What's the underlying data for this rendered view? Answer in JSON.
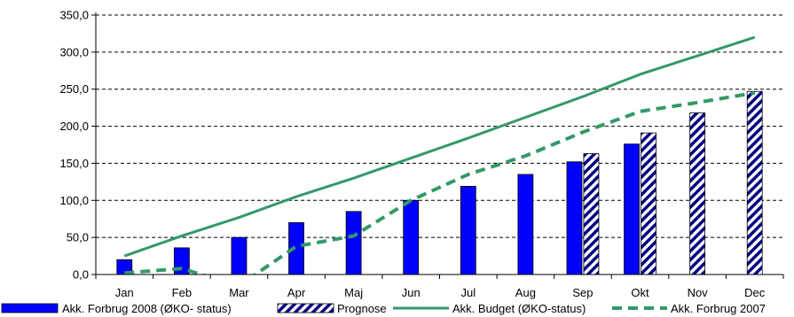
{
  "chart_data": {
    "type": "bar",
    "categories": [
      "Jan",
      "Feb",
      "Mar",
      "Apr",
      "Maj",
      "Jun",
      "Jul",
      "Aug",
      "Sep",
      "Okt",
      "Nov",
      "Dec"
    ],
    "ylim": [
      0,
      350
    ],
    "yticks": [
      "0,0",
      "50,0",
      "100,0",
      "150,0",
      "200,0",
      "250,0",
      "300,0",
      "350,0"
    ],
    "ytick_values": [
      0,
      50,
      100,
      150,
      200,
      250,
      300,
      350
    ],
    "grid": true,
    "legend_position": "bottom",
    "series": [
      {
        "name": "Akk. Forbrug 2008 (ØKO- status)",
        "kind": "bar",
        "color": "#0000ff",
        "values": [
          20,
          36,
          50,
          70,
          85,
          100,
          119,
          135,
          152,
          176,
          null,
          null
        ]
      },
      {
        "name": "Prognose",
        "kind": "bar-hatched",
        "color": "#000080",
        "values": [
          null,
          null,
          null,
          null,
          null,
          null,
          null,
          null,
          163,
          191,
          218,
          247
        ]
      },
      {
        "name": "Akk. Budget (ØKO-status)",
        "kind": "line",
        "color": "#339966",
        "values": [
          25,
          52,
          77,
          105,
          130,
          157,
          184,
          212,
          240,
          270,
          295,
          320
        ]
      },
      {
        "name": "Akk. Forbrug 2007",
        "kind": "dashed-line",
        "color": "#339966",
        "values": [
          2,
          8,
          -15,
          38,
          52,
          100,
          135,
          160,
          192,
          220,
          232,
          245
        ]
      }
    ]
  }
}
